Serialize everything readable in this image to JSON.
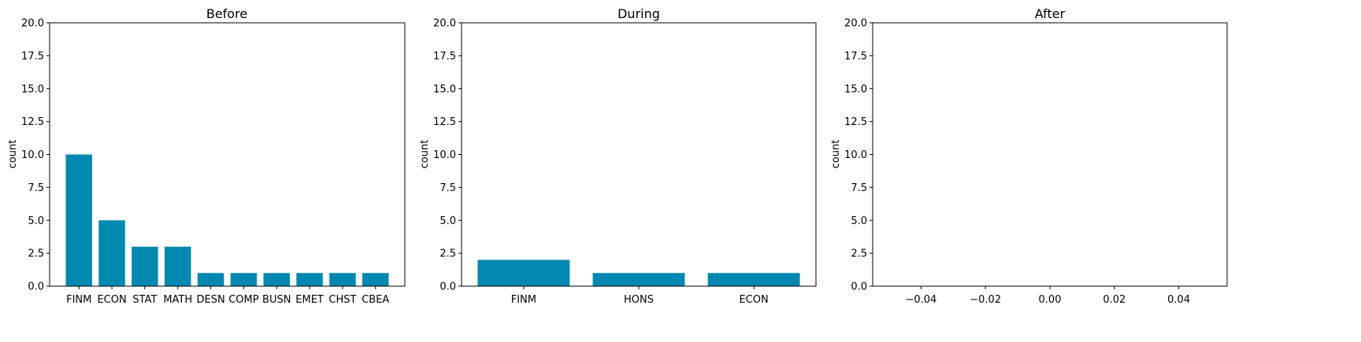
{
  "bar_color": "#0088b0",
  "chart_data": [
    {
      "type": "bar",
      "title": "Before",
      "xlabel": "",
      "ylabel": "count",
      "ylim": [
        0,
        20
      ],
      "yticks": [
        "0.0",
        "2.5",
        "5.0",
        "7.5",
        "10.0",
        "12.5",
        "15.0",
        "17.5",
        "20.0"
      ],
      "categories": [
        "FINM",
        "ECON",
        "STAT",
        "MATH",
        "DESN",
        "COMP",
        "BUSN",
        "EMET",
        "CHST",
        "CBEA"
      ],
      "values": [
        10,
        5,
        3,
        3,
        1,
        1,
        1,
        1,
        1,
        1
      ]
    },
    {
      "type": "bar",
      "title": "During",
      "xlabel": "",
      "ylabel": "count",
      "ylim": [
        0,
        20
      ],
      "yticks": [
        "0.0",
        "2.5",
        "5.0",
        "7.5",
        "10.0",
        "12.5",
        "15.0",
        "17.5",
        "20.0"
      ],
      "categories": [
        "FINM",
        "HONS",
        "ECON"
      ],
      "values": [
        2,
        1,
        1
      ]
    },
    {
      "type": "bar",
      "title": "After",
      "xlabel": "",
      "ylabel": "count",
      "ylim": [
        0,
        20
      ],
      "xlim": [
        -0.055,
        0.055
      ],
      "yticks": [
        "0.0",
        "2.5",
        "5.0",
        "7.5",
        "10.0",
        "12.5",
        "15.0",
        "17.5",
        "20.0"
      ],
      "xticks": [
        "−0.04",
        "−0.02",
        "0.00",
        "0.02",
        "0.04"
      ],
      "categories": [],
      "values": []
    }
  ]
}
